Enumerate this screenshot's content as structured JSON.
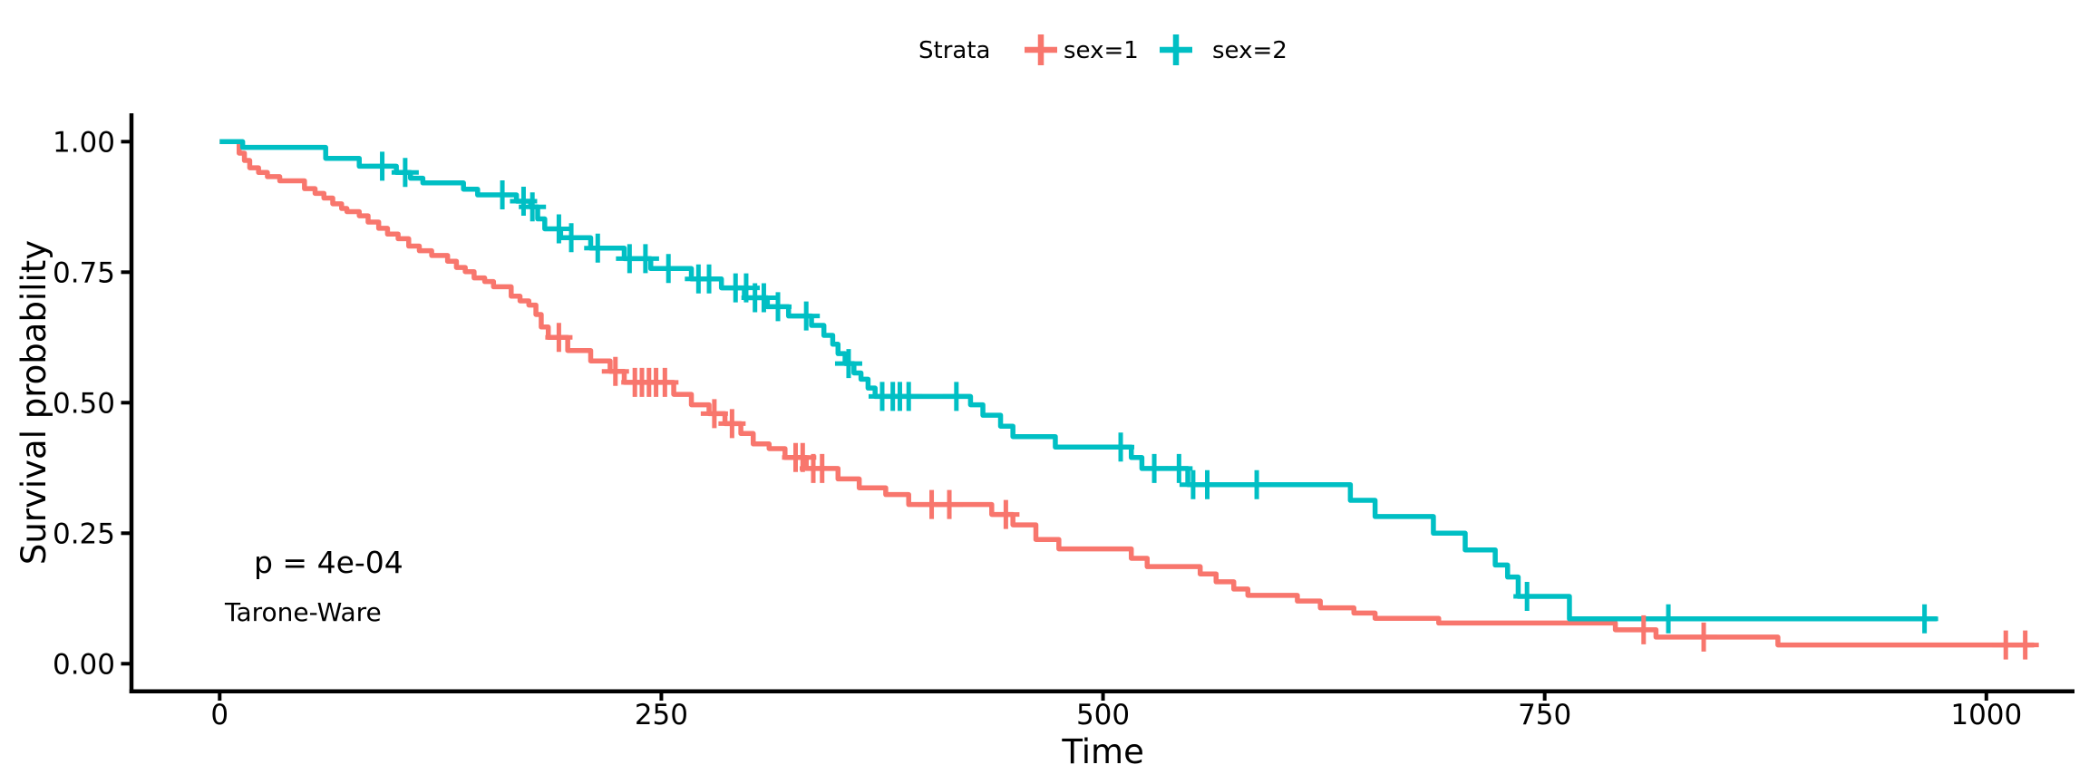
{
  "figure": {
    "background": "#ffffff",
    "kind": "kaplan-meier-survival-plot"
  },
  "legend": {
    "title": "Strata",
    "items": [
      {
        "label": "sex=1",
        "color": "#F8766D"
      },
      {
        "label": "sex=2",
        "color": "#00BFC4"
      }
    ]
  },
  "annotations": {
    "pvalue": "p = 4e-04",
    "method": "Tarone-Ware"
  },
  "x_axis": {
    "label": "Time",
    "tick_labels": [
      "0",
      "250",
      "500",
      "750",
      "1000"
    ],
    "tick_values": [
      0,
      250,
      500,
      750,
      1000
    ]
  },
  "y_axis": {
    "label": "Survival probability",
    "tick_labels": [
      "1.00",
      "0.75",
      "0.50",
      "0.25",
      "0.00"
    ],
    "tick_values": [
      1.0,
      0.75,
      0.5,
      0.25,
      0.0
    ]
  },
  "chart_data": {
    "type": "line",
    "subtype": "kaplan-meier-step",
    "title": "",
    "xlabel": "Time",
    "ylabel": "Survival probability",
    "xlim": [
      0,
      1060
    ],
    "ylim": [
      0,
      1
    ],
    "grid": false,
    "legend_position": "top-center",
    "strata_title": "Strata",
    "pvalue": "p = 4e-04",
    "test_method": "Tarone-Ware",
    "series": [
      {
        "name": "sex=1",
        "color": "#F8766D",
        "steps": [
          [
            0,
            1.0
          ],
          [
            11,
            0.978
          ],
          [
            14,
            0.964
          ],
          [
            17,
            0.95
          ],
          [
            22,
            0.941
          ],
          [
            27,
            0.933
          ],
          [
            34,
            0.925
          ],
          [
            48,
            0.91
          ],
          [
            54,
            0.901
          ],
          [
            59,
            0.892
          ],
          [
            64,
            0.881
          ],
          [
            69,
            0.872
          ],
          [
            72,
            0.866
          ],
          [
            79,
            0.858
          ],
          [
            84,
            0.846
          ],
          [
            90,
            0.834
          ],
          [
            95,
            0.823
          ],
          [
            101,
            0.814
          ],
          [
            107,
            0.8
          ],
          [
            113,
            0.791
          ],
          [
            120,
            0.782
          ],
          [
            129,
            0.771
          ],
          [
            134,
            0.759
          ],
          [
            139,
            0.751
          ],
          [
            144,
            0.739
          ],
          [
            150,
            0.732
          ],
          [
            155,
            0.722
          ],
          [
            165,
            0.704
          ],
          [
            170,
            0.695
          ],
          [
            175,
            0.687
          ],
          [
            179,
            0.669
          ],
          [
            182,
            0.645
          ],
          [
            186,
            0.625
          ],
          [
            197,
            0.6
          ],
          [
            210,
            0.58
          ],
          [
            221,
            0.56
          ],
          [
            229,
            0.539
          ],
          [
            257,
            0.516
          ],
          [
            267,
            0.496
          ],
          [
            277,
            0.479
          ],
          [
            286,
            0.46
          ],
          [
            295,
            0.441
          ],
          [
            302,
            0.421
          ],
          [
            311,
            0.412
          ],
          [
            320,
            0.395
          ],
          [
            332,
            0.374
          ],
          [
            350,
            0.354
          ],
          [
            362,
            0.337
          ],
          [
            377,
            0.324
          ],
          [
            390,
            0.305
          ],
          [
            437,
            0.286
          ],
          [
            449,
            0.266
          ],
          [
            462,
            0.238
          ],
          [
            475,
            0.22
          ],
          [
            516,
            0.202
          ],
          [
            525,
            0.186
          ],
          [
            555,
            0.172
          ],
          [
            564,
            0.157
          ],
          [
            574,
            0.143
          ],
          [
            582,
            0.131
          ],
          [
            610,
            0.12
          ],
          [
            623,
            0.107
          ],
          [
            642,
            0.097
          ],
          [
            654,
            0.087
          ],
          [
            690,
            0.078
          ],
          [
            790,
            0.065
          ],
          [
            813,
            0.051
          ],
          [
            882,
            0.036
          ],
          [
            1027,
            0.036
          ]
        ],
        "censored": [
          [
            192,
            0.625
          ],
          [
            224,
            0.56
          ],
          [
            235,
            0.539
          ],
          [
            239,
            0.539
          ],
          [
            243,
            0.539
          ],
          [
            247,
            0.539
          ],
          [
            252,
            0.539
          ],
          [
            280,
            0.479
          ],
          [
            290,
            0.46
          ],
          [
            326,
            0.395
          ],
          [
            330,
            0.395
          ],
          [
            336,
            0.374
          ],
          [
            341,
            0.374
          ],
          [
            403,
            0.305
          ],
          [
            413,
            0.305
          ],
          [
            445,
            0.286
          ],
          [
            806,
            0.065
          ],
          [
            840,
            0.051
          ],
          [
            1011,
            0.036
          ],
          [
            1022,
            0.036
          ]
        ]
      },
      {
        "name": "sex=2",
        "color": "#00BFC4",
        "steps": [
          [
            0,
            1.0
          ],
          [
            13,
            0.989
          ],
          [
            60,
            0.968
          ],
          [
            79,
            0.953
          ],
          [
            100,
            0.941
          ],
          [
            108,
            0.93
          ],
          [
            115,
            0.921
          ],
          [
            138,
            0.909
          ],
          [
            146,
            0.898
          ],
          [
            168,
            0.886
          ],
          [
            176,
            0.875
          ],
          [
            180,
            0.852
          ],
          [
            184,
            0.833
          ],
          [
            193,
            0.816
          ],
          [
            210,
            0.796
          ],
          [
            229,
            0.776
          ],
          [
            244,
            0.757
          ],
          [
            267,
            0.737
          ],
          [
            284,
            0.72
          ],
          [
            297,
            0.701
          ],
          [
            310,
            0.684
          ],
          [
            322,
            0.666
          ],
          [
            335,
            0.648
          ],
          [
            342,
            0.629
          ],
          [
            347,
            0.612
          ],
          [
            350,
            0.594
          ],
          [
            354,
            0.575
          ],
          [
            359,
            0.557
          ],
          [
            363,
            0.545
          ],
          [
            367,
            0.528
          ],
          [
            371,
            0.512
          ],
          [
            425,
            0.496
          ],
          [
            432,
            0.476
          ],
          [
            442,
            0.455
          ],
          [
            449,
            0.435
          ],
          [
            473,
            0.415
          ],
          [
            516,
            0.395
          ],
          [
            522,
            0.374
          ],
          [
            548,
            0.343
          ],
          [
            640,
            0.313
          ],
          [
            654,
            0.282
          ],
          [
            687,
            0.25
          ],
          [
            705,
            0.218
          ],
          [
            722,
            0.189
          ],
          [
            729,
            0.166
          ],
          [
            735,
            0.129
          ],
          [
            764,
            0.086
          ],
          [
            972,
            0.086
          ]
        ],
        "censored": [
          [
            92,
            0.953
          ],
          [
            105,
            0.941
          ],
          [
            160,
            0.898
          ],
          [
            172,
            0.886
          ],
          [
            177,
            0.875
          ],
          [
            192,
            0.833
          ],
          [
            199,
            0.816
          ],
          [
            214,
            0.796
          ],
          [
            232,
            0.776
          ],
          [
            241,
            0.776
          ],
          [
            254,
            0.757
          ],
          [
            271,
            0.737
          ],
          [
            277,
            0.737
          ],
          [
            292,
            0.72
          ],
          [
            298,
            0.72
          ],
          [
            303,
            0.701
          ],
          [
            308,
            0.701
          ],
          [
            316,
            0.684
          ],
          [
            332,
            0.666
          ],
          [
            356,
            0.575
          ],
          [
            375,
            0.512
          ],
          [
            381,
            0.512
          ],
          [
            385,
            0.512
          ],
          [
            390,
            0.512
          ],
          [
            417,
            0.512
          ],
          [
            510,
            0.415
          ],
          [
            529,
            0.374
          ],
          [
            543,
            0.374
          ],
          [
            551,
            0.343
          ],
          [
            559,
            0.343
          ],
          [
            587,
            0.343
          ],
          [
            740,
            0.129
          ],
          [
            820,
            0.086
          ],
          [
            965,
            0.086
          ]
        ]
      }
    ]
  }
}
